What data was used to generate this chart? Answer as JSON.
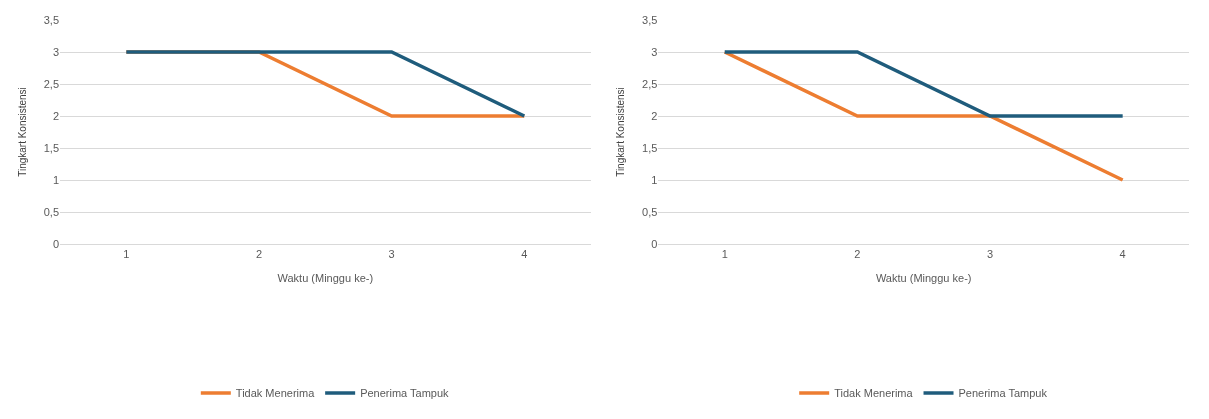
{
  "chart_data": [
    {
      "type": "line",
      "xlabel": "Waktu (Minggu ke-)",
      "ylabel": "Tingkart Konsistensi",
      "categories": [
        "1",
        "2",
        "3",
        "4"
      ],
      "ylim": [
        0,
        3.5
      ],
      "yticks": [
        0,
        {
          "value": 0.5,
          "label": "0,5"
        },
        1,
        {
          "value": 1.5,
          "label": "1,5"
        },
        2,
        {
          "value": 2.5,
          "label": "2,5"
        },
        3,
        {
          "value": 3.5,
          "label": "3,5"
        }
      ],
      "grid": "y",
      "legend": "bottom",
      "marker": "none",
      "line_style": "solid",
      "series": [
        {
          "name": "Tidak Menerima",
          "color": "#ed7d31",
          "values": [
            3,
            3,
            2,
            2
          ]
        },
        {
          "name": "Penerima Tampuk",
          "color": "#1f5c7c",
          "values": [
            3,
            3,
            3,
            2
          ]
        }
      ]
    },
    {
      "type": "line",
      "xlabel": "Waktu (Minggu ke-)",
      "ylabel": "Tingkart Konsistensi",
      "categories": [
        "1",
        "2",
        "3",
        "4"
      ],
      "ylim": [
        0,
        3.5
      ],
      "yticks": [
        0,
        {
          "value": 0.5,
          "label": "0,5"
        },
        1,
        {
          "value": 1.5,
          "label": "1,5"
        },
        2,
        {
          "value": 2.5,
          "label": "2,5"
        },
        3,
        {
          "value": 3.5,
          "label": "3,5"
        }
      ],
      "grid": "y",
      "legend": "bottom",
      "marker": "none",
      "line_style": "solid",
      "series": [
        {
          "name": "Tidak Menerima",
          "color": "#ed7d31",
          "values": [
            3,
            2,
            2,
            1
          ]
        },
        {
          "name": "Penerima Tampuk",
          "color": "#1f5c7c",
          "values": [
            3,
            3,
            2,
            2
          ]
        }
      ]
    }
  ]
}
